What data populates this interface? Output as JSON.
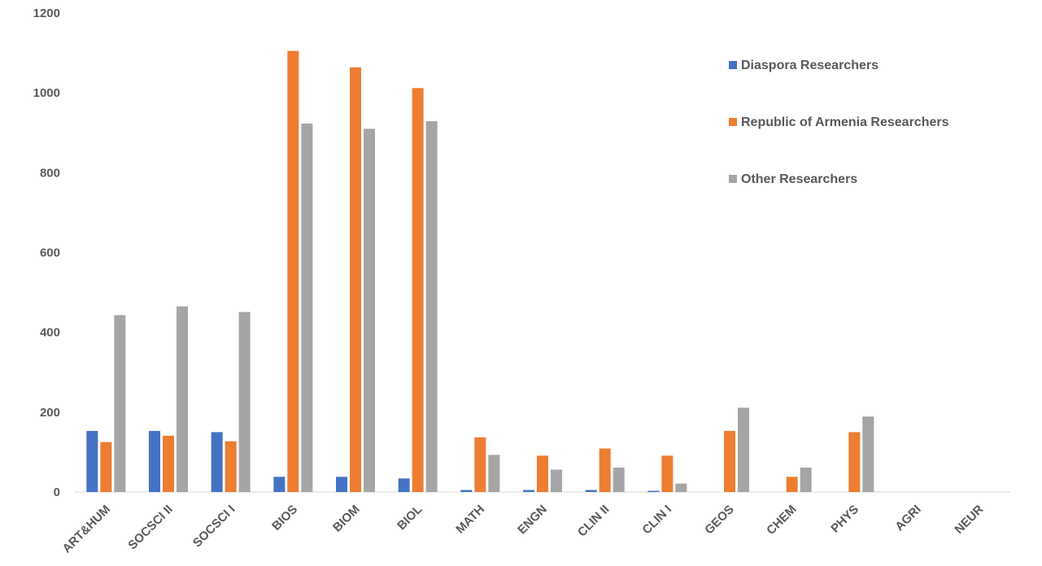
{
  "chart_data": {
    "type": "bar",
    "title": "",
    "xlabel": "",
    "ylabel": "",
    "ylim": [
      0,
      1200
    ],
    "yticks": [
      0,
      200,
      400,
      600,
      800,
      1000,
      1200
    ],
    "grid": false,
    "legend_position": "top-right",
    "categories": [
      "ART&HUM",
      "SOCSCI II",
      "SOCSCI I",
      "BIOS",
      "BIOM",
      "BIOL",
      "MATH",
      "ENGN",
      "CLIN II",
      "CLIN I",
      "GEOS",
      "CHEM",
      "PHYS",
      "AGRI",
      "NEUR"
    ],
    "series": [
      {
        "name": "Diaspora Researchers",
        "color": "#4472C4",
        "values": [
          153,
          153,
          150,
          38,
          38,
          34,
          5,
          5,
          5,
          3,
          0,
          0,
          0,
          0,
          0
        ]
      },
      {
        "name": "Republic of Armenia Researchers",
        "color": "#ED7D31",
        "values": [
          125,
          141,
          127,
          1105,
          1064,
          1012,
          137,
          91,
          109,
          91,
          153,
          38,
          150,
          0,
          0
        ]
      },
      {
        "name": "Other Researchers",
        "color": "#A5A5A5",
        "values": [
          443,
          465,
          451,
          923,
          910,
          929,
          93,
          56,
          61,
          21,
          211,
          61,
          189,
          0,
          0
        ]
      }
    ]
  }
}
